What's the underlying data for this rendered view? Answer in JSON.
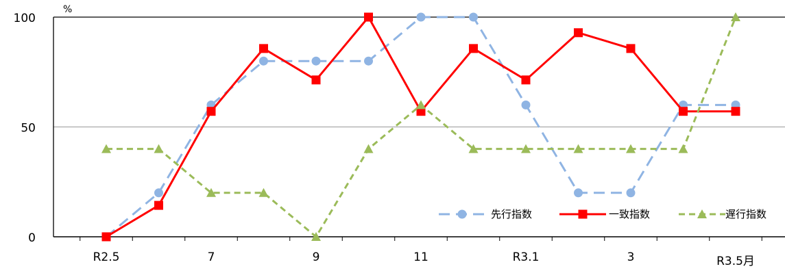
{
  "chart_data": {
    "type": "line",
    "y_unit": "%",
    "ylim": [
      0,
      100
    ],
    "y_ticks": [
      0,
      50,
      100
    ],
    "grid": "horizontal-50",
    "legend_position": "bottom-right",
    "x": [
      0,
      1,
      2,
      3,
      4,
      5,
      6,
      7,
      8,
      9,
      10,
      11,
      12
    ],
    "x_tick_labels": [
      {
        "x": 0,
        "label": "R2.5"
      },
      {
        "x": 2,
        "label": "7"
      },
      {
        "x": 4,
        "label": "9"
      },
      {
        "x": 6,
        "label": "11"
      },
      {
        "x": 8,
        "label": "R3.1"
      },
      {
        "x": 10,
        "label": "3"
      },
      {
        "x": 12,
        "label": "R3.5月"
      }
    ],
    "series": [
      {
        "name": "先行指数",
        "color": "#8fb4e3",
        "marker": "circle",
        "dash": "dashed",
        "values": [
          0,
          20,
          60,
          80,
          80,
          80,
          100,
          100,
          60,
          20,
          20,
          60,
          60
        ]
      },
      {
        "name": "一致指数",
        "color": "#ff0000",
        "marker": "square",
        "dash": "solid",
        "values": [
          0,
          14.3,
          57.1,
          85.7,
          71.4,
          100,
          57.1,
          85.7,
          71.4,
          92.9,
          85.7,
          57.1,
          57.1
        ]
      },
      {
        "name": "遅行指数",
        "color": "#9bbb59",
        "marker": "triangle",
        "dash": "dashed",
        "values": [
          40,
          40,
          20,
          20,
          0,
          40,
          60,
          40,
          40,
          40,
          40,
          40,
          100
        ]
      }
    ]
  }
}
